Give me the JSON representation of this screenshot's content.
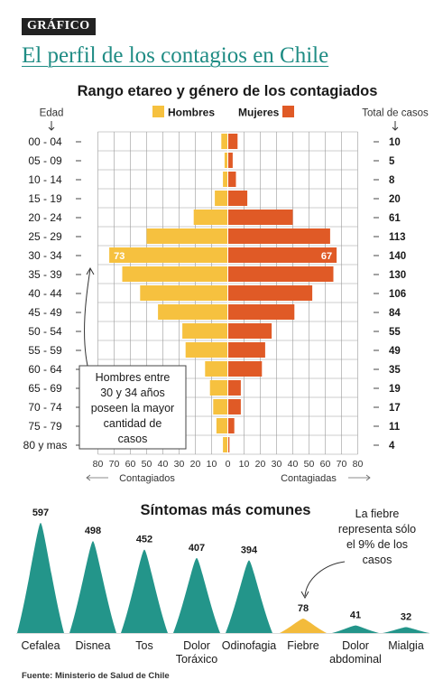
{
  "header": {
    "tag": "GRÁFICO",
    "title": "El perfil de los contagios en Chile"
  },
  "colors": {
    "hombres": "#f6c13f",
    "mujeres": "#e05a26",
    "sintomas": "#23958a",
    "fiebre": "#f3bb3b",
    "title_teal": "#1f8c84",
    "grid": "#9a9a9a"
  },
  "chart_data": [
    {
      "type": "bar",
      "orientation": "horizontal-pyramid",
      "title": "Rango etareo y género de los contagiados",
      "ylabel_left": "Edad",
      "ylabel_right": "Total de casos",
      "xlabel_left": "Contagiados",
      "xlabel_right": "Contagiadas",
      "xlim": [
        0,
        80
      ],
      "x_ticks": [
        80,
        70,
        60,
        50,
        40,
        30,
        20,
        10,
        0,
        10,
        20,
        30,
        40,
        50,
        60,
        70,
        80
      ],
      "grid": true,
      "legend_position": "top-center",
      "categories": [
        "00 - 04",
        "05 - 09",
        "10 - 14",
        "15 - 19",
        "20 - 24",
        "25 - 29",
        "30 - 34",
        "35 - 39",
        "40 - 44",
        "45 - 49",
        "50 - 54",
        "55 - 59",
        "60 - 64",
        "65 - 69",
        "70 - 74",
        "75 - 79",
        "80 y mas"
      ],
      "series": [
        {
          "name": "Hombres",
          "values": [
            4,
            2,
            3,
            8,
            21,
            50,
            73,
            65,
            54,
            43,
            28,
            26,
            14,
            11,
            9,
            7,
            3
          ]
        },
        {
          "name": "Mujeres",
          "values": [
            6,
            3,
            5,
            12,
            40,
            63,
            67,
            65,
            52,
            41,
            27,
            23,
            21,
            8,
            8,
            4,
            1
          ]
        }
      ],
      "totals": [
        10,
        5,
        8,
        20,
        61,
        113,
        140,
        130,
        106,
        84,
        55,
        49,
        35,
        19,
        17,
        11,
        4
      ],
      "data_labels": {
        "hombres_30_34": "73",
        "mujeres_30_34": "67"
      },
      "annotation": "Hombres entre 30 y 34 años poseen la mayor cantidad de casos"
    },
    {
      "type": "bar",
      "title": "Síntomas más comunes",
      "categories": [
        "Cefalea",
        "Disnea",
        "Tos",
        "Dolor Toráxico",
        "Odinofagia",
        "Fiebre",
        "Dolor abdominal",
        "Mialgia"
      ],
      "category_lines": [
        [
          "Cefalea"
        ],
        [
          "Disnea"
        ],
        [
          "Tos"
        ],
        [
          "Dolor",
          "Toráxico"
        ],
        [
          "Odinofagia"
        ],
        [
          "Fiebre"
        ],
        [
          "Dolor",
          "abdominal"
        ],
        [
          "Mialgia"
        ]
      ],
      "values": [
        597,
        498,
        452,
        407,
        394,
        78,
        41,
        32
      ],
      "value_labels": [
        "597",
        "498",
        "452",
        "407",
        "394",
        "78",
        "41",
        "32"
      ],
      "highlight": "Fiebre",
      "annotation": "La fiebre representa sólo el 9% de los casos"
    }
  ],
  "footer": {
    "source": "Fuente: Ministerio de Salud de Chile"
  }
}
